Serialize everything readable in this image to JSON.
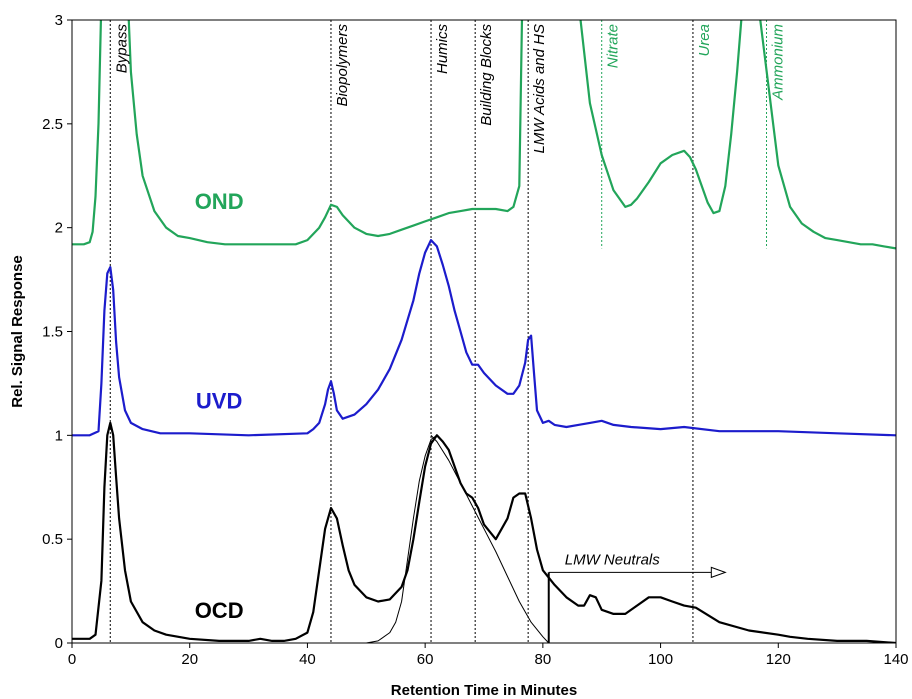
{
  "chart_data": {
    "type": "line",
    "title": "",
    "xlabel": "Retention Time in Minutes",
    "ylabel": "Rel. Signal Response",
    "xlim": [
      0,
      140
    ],
    "ylim": [
      0,
      3
    ],
    "xticks": [
      "0",
      "20",
      "40",
      "60",
      "80",
      "100",
      "120",
      "140"
    ],
    "yticks": [
      "0",
      "0.5",
      "1",
      "1.5",
      "2",
      "2.5",
      "3"
    ],
    "grid": false,
    "legend": "none",
    "vlines": [
      {
        "x": 6.5,
        "label": "Bypass",
        "color": "#000000",
        "label_color": "#000000",
        "ymin": 0,
        "ymax": 3
      },
      {
        "x": 44,
        "label": "Biopolymers",
        "color": "#000000",
        "label_color": "#000000",
        "ymin": 0,
        "ymax": 3
      },
      {
        "x": 61,
        "label": "Humics",
        "color": "#000000",
        "label_color": "#000000",
        "ymin": 0,
        "ymax": 3
      },
      {
        "x": 68.5,
        "label": "Building Blocks",
        "color": "#000000",
        "label_color": "#000000",
        "ymin": 0,
        "ymax": 3
      },
      {
        "x": 77.5,
        "label": "LMW Acids and HS",
        "color": "#000000",
        "label_color": "#000000",
        "ymin": 0,
        "ymax": 3
      },
      {
        "x": 90,
        "label": "Nitrate",
        "color": "#22a55a",
        "label_color": "#22a55a",
        "ymin": 1.9,
        "ymax": 3
      },
      {
        "x": 105.5,
        "label": "Urea",
        "color": "#000000",
        "label_color": "#22a55a",
        "ymin": 0,
        "ymax": 3
      },
      {
        "x": 118,
        "label": "Ammonium",
        "color": "#22a55a",
        "label_color": "#22a55a",
        "ymin": 1.9,
        "ymax": 3
      }
    ],
    "series_labels": [
      {
        "text": "OND",
        "color": "#22a55a",
        "x": 25,
        "y": 2.09
      },
      {
        "text": "UVD",
        "color": "#1c1ccc",
        "x": 25,
        "y": 1.13
      },
      {
        "text": "OCD",
        "color": "#000000",
        "x": 25,
        "y": 0.12
      }
    ],
    "annotation": {
      "text": "LMW Neutrals",
      "x_start": 81,
      "x_end": 111,
      "y": 0.34
    },
    "series": [
      {
        "name": "OND",
        "color": "#22a55a",
        "x": [
          0,
          2,
          3,
          3.5,
          4,
          4.5,
          5,
          9.5,
          10,
          11,
          12,
          14,
          16,
          18,
          20,
          23,
          26,
          30,
          34,
          38,
          40,
          42,
          43,
          44,
          45,
          46,
          48,
          50,
          52,
          54,
          56,
          58,
          60,
          62,
          64,
          66,
          68,
          70,
          72,
          74,
          75,
          76,
          76.5,
          78,
          82,
          86,
          88,
          90,
          92,
          94,
          95,
          96,
          98,
          100,
          102,
          104,
          105,
          106,
          107,
          108,
          109,
          110,
          111,
          112,
          113,
          114,
          115,
          116,
          116.5,
          120,
          122,
          124,
          126,
          128,
          130,
          132,
          134,
          136,
          138,
          140
        ],
        "y": [
          1.92,
          1.92,
          1.93,
          1.98,
          2.15,
          2.5,
          3.1,
          3.1,
          2.75,
          2.45,
          2.25,
          2.08,
          2.0,
          1.96,
          1.95,
          1.93,
          1.92,
          1.92,
          1.92,
          1.92,
          1.94,
          2.0,
          2.05,
          2.11,
          2.1,
          2.06,
          2.0,
          1.97,
          1.96,
          1.97,
          1.99,
          2.01,
          2.03,
          2.05,
          2.07,
          2.08,
          2.09,
          2.09,
          2.09,
          2.08,
          2.1,
          2.2,
          3.1,
          3.1,
          3.1,
          3.1,
          2.6,
          2.35,
          2.18,
          2.1,
          2.11,
          2.14,
          2.22,
          2.31,
          2.35,
          2.37,
          2.34,
          2.28,
          2.2,
          2.12,
          2.07,
          2.08,
          2.2,
          2.45,
          2.75,
          3.1,
          3.1,
          3.1,
          3.1,
          2.3,
          2.1,
          2.02,
          1.98,
          1.95,
          1.94,
          1.93,
          1.92,
          1.92,
          1.91,
          1.9
        ]
      },
      {
        "name": "UVD",
        "color": "#1c1ccc",
        "x": [
          0,
          3,
          4.5,
          5,
          5.5,
          6,
          6.5,
          7,
          7.5,
          8,
          9,
          10,
          12,
          15,
          20,
          30,
          40,
          41,
          42,
          43,
          43.5,
          44,
          44.5,
          45,
          46,
          48,
          50,
          52,
          54,
          56,
          58,
          59,
          60,
          61,
          62,
          63,
          64,
          65,
          66,
          67,
          68,
          69,
          70,
          72,
          74,
          75,
          76,
          77,
          77.5,
          78,
          78.5,
          79,
          80,
          81,
          82,
          84,
          86,
          88,
          90,
          92,
          95,
          100,
          104,
          110,
          120,
          130,
          140
        ],
        "y": [
          1.0,
          1.0,
          1.02,
          1.25,
          1.6,
          1.78,
          1.81,
          1.7,
          1.45,
          1.28,
          1.12,
          1.06,
          1.03,
          1.01,
          1.01,
          1.0,
          1.01,
          1.03,
          1.06,
          1.15,
          1.22,
          1.26,
          1.2,
          1.12,
          1.08,
          1.1,
          1.15,
          1.22,
          1.32,
          1.46,
          1.65,
          1.78,
          1.88,
          1.94,
          1.91,
          1.82,
          1.72,
          1.6,
          1.5,
          1.4,
          1.34,
          1.34,
          1.3,
          1.24,
          1.2,
          1.2,
          1.24,
          1.35,
          1.46,
          1.48,
          1.3,
          1.12,
          1.06,
          1.07,
          1.05,
          1.04,
          1.05,
          1.06,
          1.07,
          1.05,
          1.04,
          1.03,
          1.04,
          1.02,
          1.02,
          1.01,
          1.0
        ]
      },
      {
        "name": "OCD",
        "color": "#000000",
        "x": [
          0,
          3,
          4,
          5,
          5.5,
          6,
          6.5,
          7,
          7.5,
          8,
          9,
          10,
          12,
          14,
          16,
          20,
          25,
          30,
          32,
          34,
          36,
          38,
          40,
          41,
          42,
          43,
          44,
          45,
          46,
          47,
          48,
          50,
          52,
          54,
          56,
          57,
          58,
          59,
          60,
          61,
          62,
          63,
          64,
          65,
          66,
          67,
          68,
          69,
          70,
          72,
          74,
          75,
          76,
          77,
          78,
          79,
          80,
          82,
          84,
          86,
          87,
          88,
          89,
          90,
          92,
          94,
          96,
          98,
          100,
          102,
          104,
          106,
          110,
          115,
          120,
          122,
          125,
          130,
          135,
          140
        ],
        "y": [
          0.02,
          0.02,
          0.04,
          0.3,
          0.75,
          1.0,
          1.06,
          1.0,
          0.8,
          0.6,
          0.35,
          0.2,
          0.1,
          0.06,
          0.04,
          0.02,
          0.01,
          0.01,
          0.02,
          0.01,
          0.01,
          0.02,
          0.05,
          0.15,
          0.35,
          0.55,
          0.65,
          0.6,
          0.47,
          0.35,
          0.28,
          0.22,
          0.2,
          0.21,
          0.27,
          0.35,
          0.5,
          0.68,
          0.85,
          0.96,
          1.0,
          0.97,
          0.93,
          0.85,
          0.77,
          0.72,
          0.7,
          0.65,
          0.57,
          0.5,
          0.6,
          0.7,
          0.72,
          0.72,
          0.6,
          0.45,
          0.35,
          0.28,
          0.22,
          0.18,
          0.18,
          0.23,
          0.22,
          0.16,
          0.14,
          0.14,
          0.18,
          0.22,
          0.22,
          0.2,
          0.18,
          0.17,
          0.1,
          0.06,
          0.04,
          0.03,
          0.02,
          0.01,
          0.01,
          0.0
        ]
      },
      {
        "name": "",
        "color": "#000000",
        "thin": true,
        "x": [
          48,
          50,
          52,
          54,
          55,
          56,
          57,
          58,
          59,
          60,
          61,
          62
        ],
        "y": [
          0.0,
          0.0,
          0.01,
          0.05,
          0.1,
          0.2,
          0.4,
          0.6,
          0.78,
          0.9,
          0.98,
          1.0
        ]
      },
      {
        "name": "",
        "color": "#000000",
        "thin": true,
        "x": [
          61,
          62,
          64,
          66,
          68,
          70,
          72,
          74,
          76,
          78,
          80,
          81
        ],
        "y": [
          1.0,
          0.97,
          0.88,
          0.77,
          0.66,
          0.55,
          0.44,
          0.32,
          0.2,
          0.1,
          0.03,
          0.0
        ]
      }
    ]
  }
}
